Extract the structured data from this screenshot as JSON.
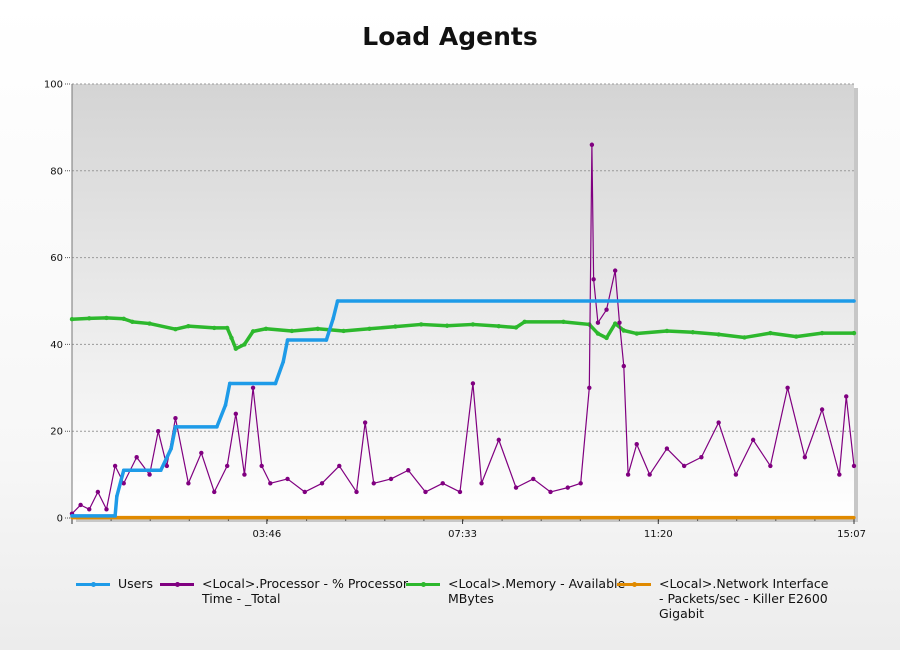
{
  "chart_data": {
    "type": "line",
    "title": "Load Agents",
    "xlabel": "",
    "ylabel": "",
    "ylim": [
      0,
      100
    ],
    "y_ticks": [
      "0",
      "20",
      "40",
      "60",
      "80",
      "100"
    ],
    "x_tick_labels": [
      "03:46",
      "07:33",
      "11:20",
      "15:07"
    ],
    "x_domain": [
      "00:00",
      "15:07"
    ],
    "grid": "horizontal dashed",
    "legend_position": "bottom",
    "series": [
      {
        "name": "Users",
        "color": "#1e9be8",
        "points": [
          [
            "00:00",
            0.5
          ],
          [
            "00:50",
            0.5
          ],
          [
            "00:52",
            5
          ],
          [
            "01:00",
            11
          ],
          [
            "01:43",
            11
          ],
          [
            "01:55",
            16
          ],
          [
            "02:00",
            21
          ],
          [
            "02:48",
            21
          ],
          [
            "02:58",
            26
          ],
          [
            "03:03",
            31
          ],
          [
            "03:56",
            31
          ],
          [
            "04:05",
            36
          ],
          [
            "04:10",
            41
          ],
          [
            "04:55",
            41
          ],
          [
            "05:03",
            46
          ],
          [
            "05:08",
            50
          ],
          [
            "15:07",
            50
          ]
        ]
      },
      {
        "name": "<Local>.Processor - % Processor\nTime - _Total",
        "color": "#800080",
        "points": [
          [
            "00:00",
            1
          ],
          [
            "00:10",
            3
          ],
          [
            "00:20",
            2
          ],
          [
            "00:30",
            6
          ],
          [
            "00:40",
            2
          ],
          [
            "00:50",
            12
          ],
          [
            "01:00",
            8
          ],
          [
            "01:15",
            14
          ],
          [
            "01:30",
            10
          ],
          [
            "01:40",
            20
          ],
          [
            "01:50",
            12
          ],
          [
            "02:00",
            23
          ],
          [
            "02:15",
            8
          ],
          [
            "02:30",
            15
          ],
          [
            "02:45",
            6
          ],
          [
            "03:00",
            12
          ],
          [
            "03:10",
            24
          ],
          [
            "03:20",
            10
          ],
          [
            "03:30",
            30
          ],
          [
            "03:40",
            12
          ],
          [
            "03:50",
            8
          ],
          [
            "04:10",
            9
          ],
          [
            "04:30",
            6
          ],
          [
            "04:50",
            8
          ],
          [
            "05:10",
            12
          ],
          [
            "05:30",
            6
          ],
          [
            "05:40",
            22
          ],
          [
            "05:50",
            8
          ],
          [
            "06:10",
            9
          ],
          [
            "06:30",
            11
          ],
          [
            "06:50",
            6
          ],
          [
            "07:10",
            8
          ],
          [
            "07:30",
            6
          ],
          [
            "07:45",
            31
          ],
          [
            "07:55",
            8
          ],
          [
            "08:15",
            18
          ],
          [
            "08:35",
            7
          ],
          [
            "08:55",
            9
          ],
          [
            "09:15",
            6
          ],
          [
            "09:35",
            7
          ],
          [
            "09:50",
            8
          ],
          [
            "10:00",
            30
          ],
          [
            "10:03",
            86
          ],
          [
            "10:05",
            55
          ],
          [
            "10:10",
            45
          ],
          [
            "10:20",
            48
          ],
          [
            "10:30",
            57
          ],
          [
            "10:35",
            45
          ],
          [
            "10:40",
            35
          ],
          [
            "10:45",
            10
          ],
          [
            "10:55",
            17
          ],
          [
            "11:10",
            10
          ],
          [
            "11:30",
            16
          ],
          [
            "11:50",
            12
          ],
          [
            "12:10",
            14
          ],
          [
            "12:30",
            22
          ],
          [
            "12:50",
            10
          ],
          [
            "13:10",
            18
          ],
          [
            "13:30",
            12
          ],
          [
            "13:50",
            30
          ],
          [
            "14:10",
            14
          ],
          [
            "14:30",
            25
          ],
          [
            "14:50",
            10
          ],
          [
            "14:58",
            28
          ],
          [
            "15:07",
            12
          ]
        ]
      },
      {
        "name": "<Local>.Memory - Available\nMBytes",
        "color": "#2db82d",
        "points": [
          [
            "00:00",
            45.8
          ],
          [
            "00:20",
            46
          ],
          [
            "00:40",
            46.1
          ],
          [
            "01:00",
            45.9
          ],
          [
            "01:10",
            45.2
          ],
          [
            "01:30",
            44.8
          ],
          [
            "02:00",
            43.5
          ],
          [
            "02:15",
            44.2
          ],
          [
            "02:45",
            43.8
          ],
          [
            "03:00",
            43.8
          ],
          [
            "03:05",
            41.5
          ],
          [
            "03:10",
            39
          ],
          [
            "03:20",
            40
          ],
          [
            "03:30",
            43
          ],
          [
            "03:45",
            43.6
          ],
          [
            "04:15",
            43.1
          ],
          [
            "04:45",
            43.6
          ],
          [
            "05:15",
            43.1
          ],
          [
            "05:45",
            43.6
          ],
          [
            "06:15",
            44.1
          ],
          [
            "06:45",
            44.6
          ],
          [
            "07:15",
            44.3
          ],
          [
            "07:45",
            44.6
          ],
          [
            "08:15",
            44.2
          ],
          [
            "08:35",
            43.9
          ],
          [
            "08:45",
            45.2
          ],
          [
            "09:30",
            45.2
          ],
          [
            "10:00",
            44.6
          ],
          [
            "10:10",
            42.5
          ],
          [
            "10:20",
            41.5
          ],
          [
            "10:30",
            44.8
          ],
          [
            "10:40",
            43.2
          ],
          [
            "10:55",
            42.5
          ],
          [
            "11:30",
            43.1
          ],
          [
            "12:00",
            42.8
          ],
          [
            "12:30",
            42.3
          ],
          [
            "13:00",
            41.6
          ],
          [
            "13:30",
            42.6
          ],
          [
            "14:00",
            41.8
          ],
          [
            "14:30",
            42.6
          ],
          [
            "15:07",
            42.6
          ]
        ]
      },
      {
        "name": "<Local>.Network Interface\n- Packets/sec - Killer E2600\nGigabit",
        "color": "#e08a00",
        "points": [
          [
            "00:00",
            0.1
          ],
          [
            "15:07",
            0.1
          ]
        ]
      }
    ]
  }
}
